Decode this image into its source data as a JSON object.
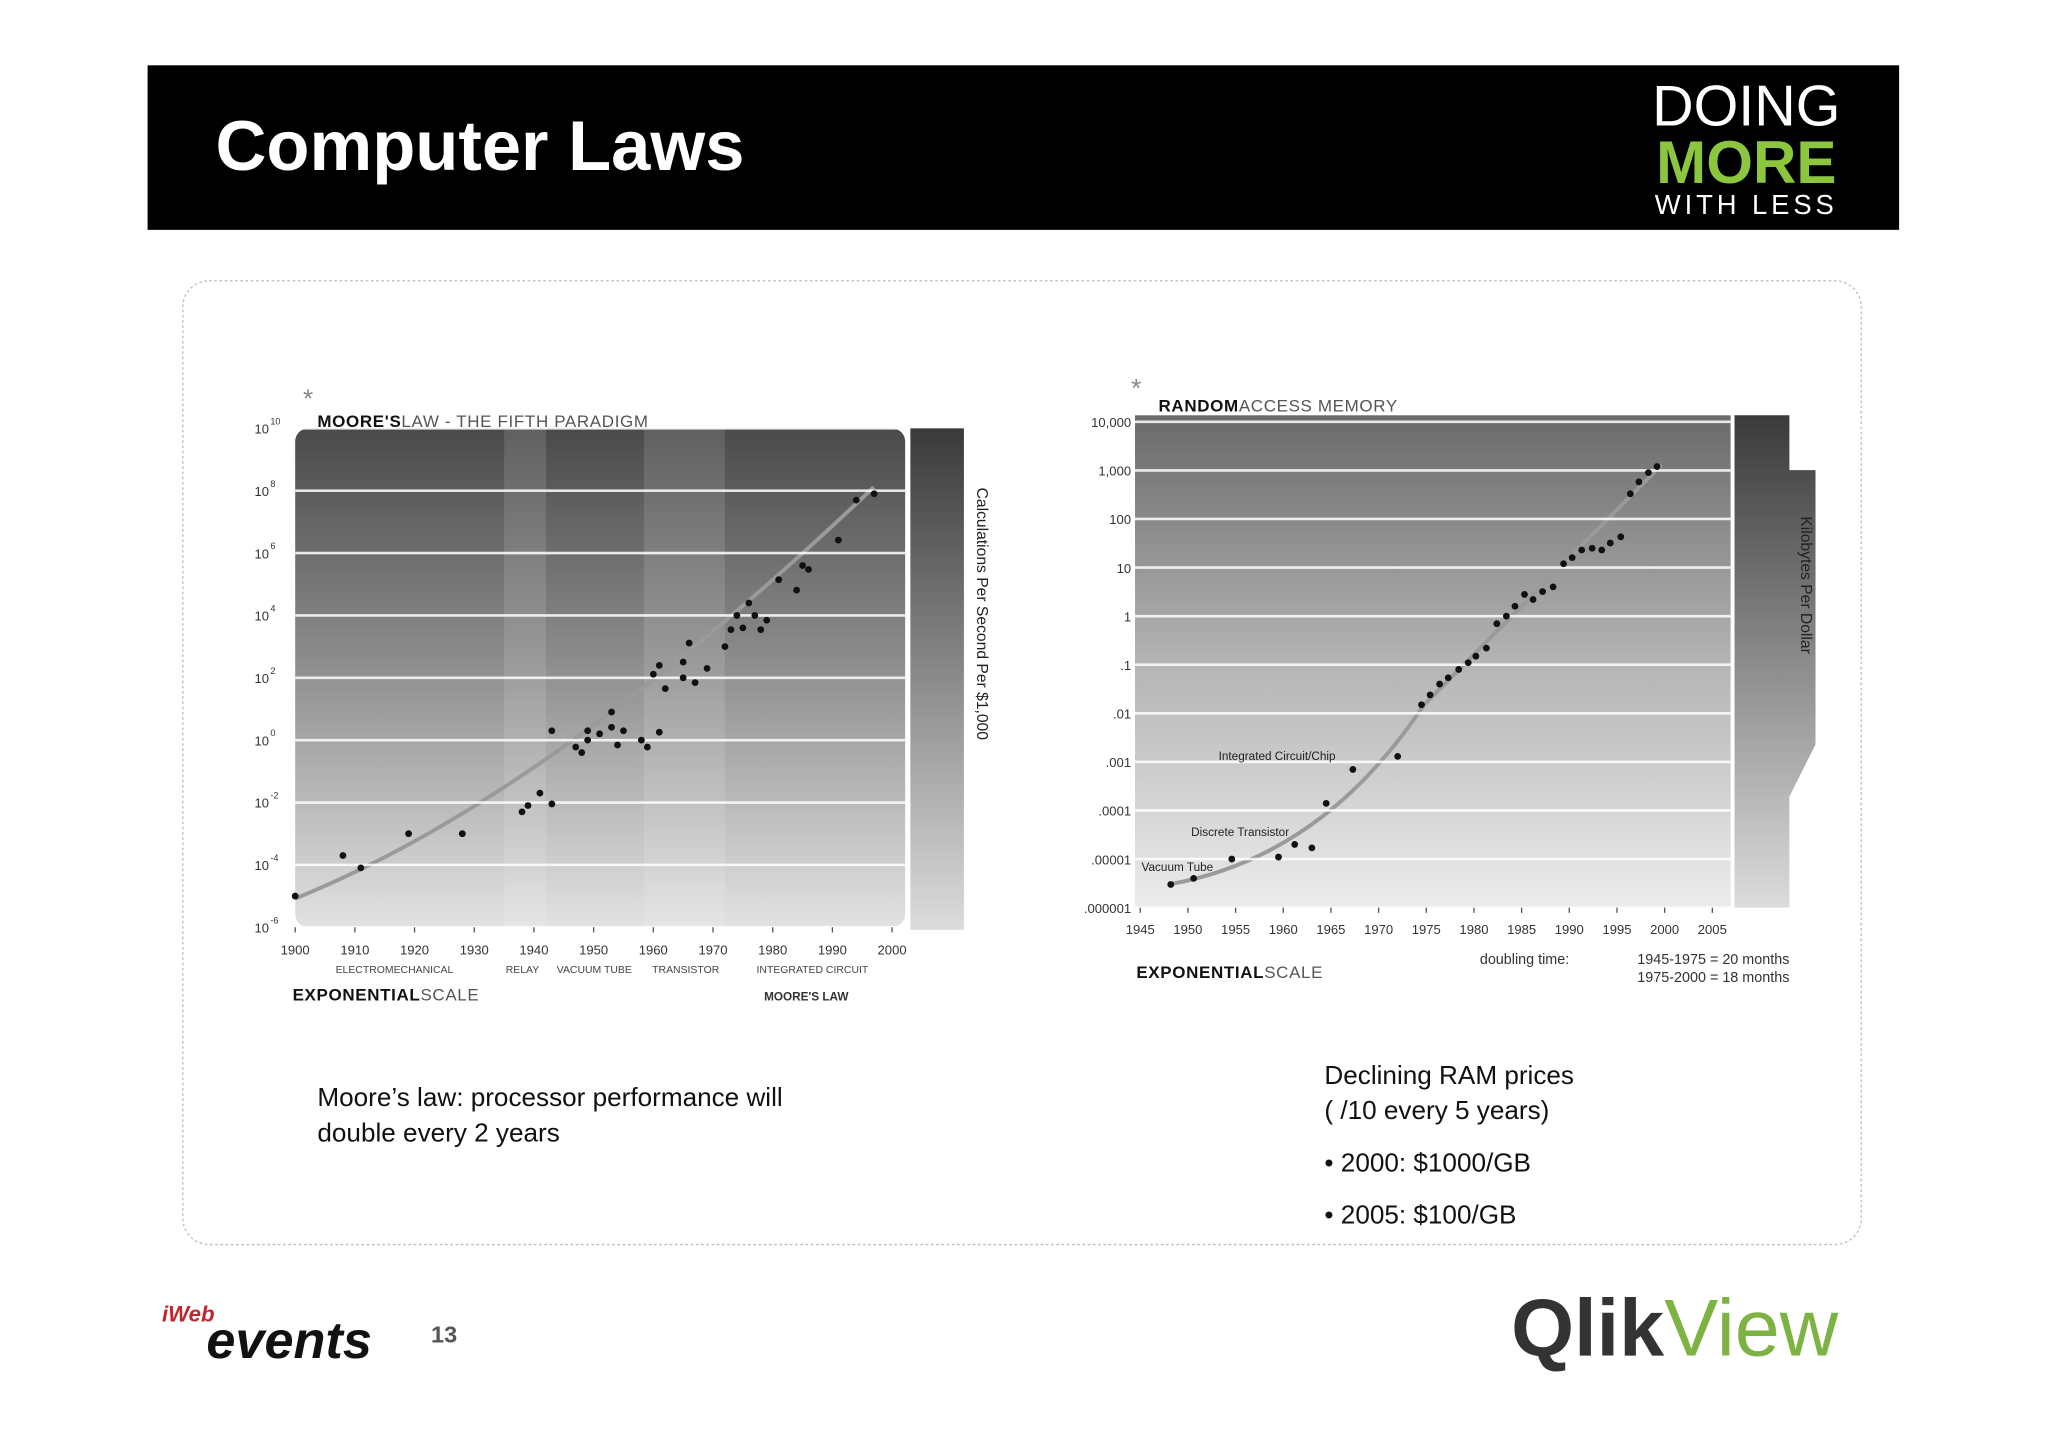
{
  "header": {
    "title": "Computer Laws",
    "logo": [
      "DOING",
      "MORE",
      "WITH LESS"
    ]
  },
  "chart_data": [
    {
      "type": "scatter",
      "title": {
        "bold": "MOORE'S",
        "light": "LAW - THE FIFTH PARADIGM"
      },
      "y_label": "Calculations Per Second Per $1,000",
      "scale_label": {
        "bold": "EXPONENTIAL",
        "light": "SCALE"
      },
      "footnote": "MOORE'S LAW",
      "eras": [
        "ELECTROMECHANICAL",
        "RELAY",
        "VACUUM TUBE",
        "TRANSISTOR",
        "INTEGRATED CIRCUIT"
      ],
      "log_y": true,
      "grid": true,
      "point_color": "#111111",
      "xlim": [
        1900,
        2000
      ],
      "ylim": [
        1e-06,
        10000000000
      ],
      "xticks": [
        1900,
        1910,
        1920,
        1930,
        1940,
        1950,
        1960,
        1970,
        1980,
        1990,
        2000
      ],
      "yticks": [
        {
          "value": 10000000000,
          "label": "10",
          "exponent": "10"
        },
        {
          "value": 100000000,
          "label": "10",
          "exponent": "8"
        },
        {
          "value": 1000000,
          "label": "10",
          "exponent": "6"
        },
        {
          "value": 10000,
          "label": "10",
          "exponent": "4"
        },
        {
          "value": 100,
          "label": "10",
          "exponent": "2"
        },
        {
          "value": 1,
          "label": "10",
          "exponent": "0"
        },
        {
          "value": 0.01,
          "label": "10",
          "exponent": "-2"
        },
        {
          "value": 0.0001,
          "label": "10",
          "exponent": "-4"
        },
        {
          "value": 1e-06,
          "label": "10",
          "exponent": "-6"
        }
      ],
      "x": [
        1900,
        1908,
        1911,
        1919,
        1928,
        1938,
        1939,
        1941,
        1943,
        1943,
        1947,
        1948,
        1949,
        1949,
        1951,
        1953,
        1953,
        1954,
        1955,
        1958,
        1959,
        1961,
        1960,
        1961,
        1962,
        1965,
        1965,
        1966,
        1967,
        1969,
        1972,
        1973,
        1974,
        1975,
        1976,
        1977,
        1978,
        1979,
        1981,
        1984,
        1985,
        1986,
        1991,
        1994,
        1997
      ],
      "values": [
        1e-05,
        0.0002,
        8e-05,
        0.001,
        0.001,
        0.005,
        0.008,
        0.02,
        0.009,
        2,
        0.6,
        0.4,
        1,
        2,
        1.6,
        2.6,
        8,
        0.7,
        2,
        1,
        0.6,
        1.8,
        130,
        250,
        45,
        100,
        320,
        1300,
        70,
        200,
        1000,
        3500,
        10000,
        4000,
        25000,
        10000,
        3500,
        7000,
        140000,
        65000,
        400000,
        300000,
        2600000,
        50000000,
        80000000
      ]
    },
    {
      "type": "scatter",
      "title": {
        "bold": "RANDOM",
        "light": "ACCESS MEMORY"
      },
      "y_label": "Kilobytes Per Dollar",
      "scale_label": {
        "bold": "EXPONENTIAL",
        "light": "SCALE"
      },
      "annotations": [
        "Integrated Circuit/Chip",
        "Discrete Transistor",
        "Vacuum Tube"
      ],
      "doubling_time": {
        "label": "doubling time:",
        "lines": [
          "1945-1975 = 20 months",
          "1975-2000 = 18 months"
        ]
      },
      "log_y": true,
      "grid": true,
      "point_color": "#111111",
      "xlim": [
        1945,
        2005
      ],
      "ylim": [
        1e-06,
        10000
      ],
      "xticks": [
        1945,
        1950,
        1955,
        1960,
        1965,
        1970,
        1975,
        1980,
        1985,
        1990,
        1995,
        2000,
        2005
      ],
      "yticks": [
        {
          "value": 10000,
          "label": "10,000"
        },
        {
          "value": 1000,
          "label": "1,000"
        },
        100,
        10,
        1,
        {
          "value": 0.1,
          "label": ".1"
        },
        {
          "value": 0.01,
          "label": ".01"
        },
        {
          "value": 0.001,
          "label": ".001"
        },
        {
          "value": 0.0001,
          "label": ".0001"
        },
        {
          "value": 1e-05,
          "label": ".00001"
        },
        {
          "value": 1e-06,
          "label": ".000001"
        }
      ],
      "x": [
        1948.2,
        1950.6,
        1954.6,
        1959.5,
        1961.2,
        1963.0,
        1964.5,
        1967.3,
        1972.0,
        1974.5,
        1975.4,
        1976.4,
        1977.3,
        1978.4,
        1979.4,
        1980.2,
        1981.3,
        1982.4,
        1983.4,
        1984.3,
        1985.3,
        1986.2,
        1987.2,
        1988.3,
        1989.4,
        1990.3,
        1991.3,
        1992.4,
        1993.4,
        1994.3,
        1995.4,
        1996.4,
        1997.3,
        1998.3,
        1999.2
      ],
      "values": [
        3e-06,
        4e-06,
        1e-05,
        1.1e-05,
        2e-05,
        1.7e-05,
        0.00014,
        0.0007,
        0.0013,
        0.015,
        0.024,
        0.04,
        0.054,
        0.08,
        0.11,
        0.15,
        0.22,
        0.7,
        1,
        1.6,
        2.8,
        2.2,
        3.2,
        4,
        12,
        16,
        23,
        25,
        23,
        32,
        43,
        330,
        580,
        900,
        1200
      ]
    }
  ],
  "captions": {
    "left": [
      "Moore’s law: processor performance will",
      "double every 2 years"
    ],
    "right": [
      "Declining RAM prices",
      "( /10 every 5 years)",
      "• 2000: $1000/GB",
      "• 2005: $100/GB"
    ]
  },
  "footer": {
    "brand_prefix": "iWeb",
    "brand": "events",
    "page": "13",
    "vendor": [
      "Qlik",
      "View"
    ]
  }
}
